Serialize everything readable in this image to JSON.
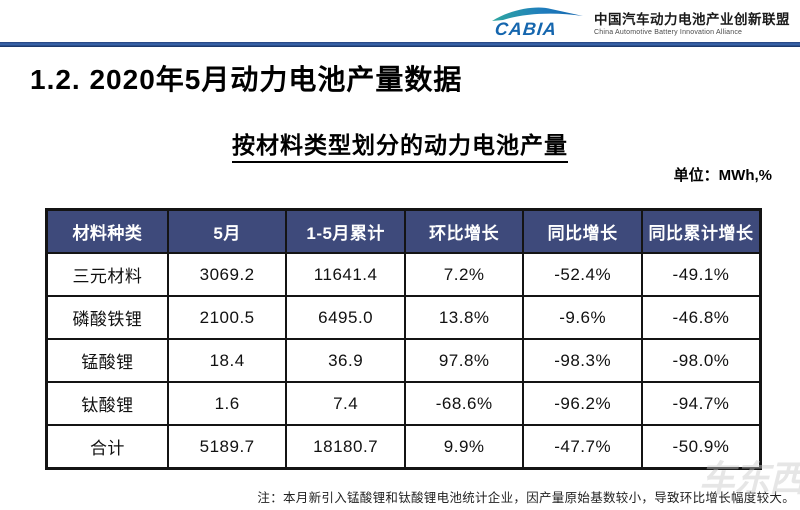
{
  "header": {
    "logo_text": "CABIA",
    "org_name_cn": "中国汽车动力电池产业创新联盟",
    "org_name_en": "China Automotive Battery Innovation Alliance"
  },
  "page": {
    "section_title": "1.2. 2020年5月动力电池产量数据",
    "table_title": "按材料类型划分的动力电池产量",
    "unit_label": "单位：MWh,%",
    "note": "注：本月新引入锰酸锂和钛酸锂电池统计企业，因产量原始基数较小，导致环比增长幅度较大。",
    "watermark": "车东西"
  },
  "colors": {
    "table_header_bg": "#3e4a7b",
    "divider_blue": "#2b5cad",
    "logo_blue": "#1566ae",
    "logo_teal": "#2fa7a0",
    "border": "#141414"
  },
  "chart_data": {
    "type": "table",
    "title": "按材料类型划分的动力电池产量",
    "unit": "MWh,%",
    "columns": [
      "材料种类",
      "5月",
      "1-5月累计",
      "环比增长",
      "同比增长",
      "同比累计增长"
    ],
    "rows": [
      [
        "三元材料",
        "3069.2",
        "11641.4",
        "7.2%",
        "-52.4%",
        "-49.1%"
      ],
      [
        "磷酸铁锂",
        "2100.5",
        "6495.0",
        "13.8%",
        "-9.6%",
        "-46.8%"
      ],
      [
        "锰酸锂",
        "18.4",
        "36.9",
        "97.8%",
        "-98.3%",
        "-98.0%"
      ],
      [
        "钛酸锂",
        "1.6",
        "7.4",
        "-68.6%",
        "-96.2%",
        "-94.7%"
      ],
      [
        "合计",
        "5189.7",
        "18180.7",
        "9.9%",
        "-47.7%",
        "-50.9%"
      ]
    ]
  }
}
